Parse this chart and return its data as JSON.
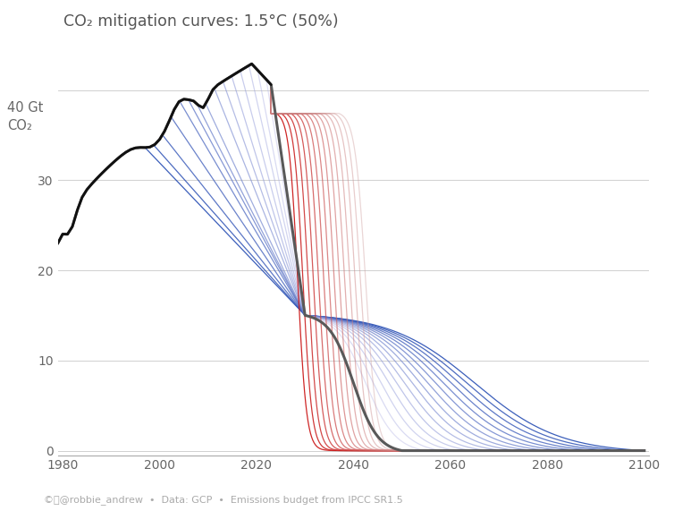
{
  "title": "CO₂ mitigation curves: 1.5°C (50%)",
  "ylabel": "40 Gt\nCO₂",
  "footnote": "©ⓘ@robbie_andrew  •  Data: GCP  •  Emissions budget from IPCC SR1.5",
  "xlim": [
    1979,
    2101
  ],
  "ylim": [
    -0.5,
    46
  ],
  "yticks": [
    0,
    10,
    20,
    30,
    40
  ],
  "xticks": [
    1980,
    2000,
    2020,
    2040,
    2060,
    2080,
    2100
  ],
  "hist_start": 1979,
  "hist_end": 2023,
  "peak_year": 2019,
  "peak_value": 43.1,
  "val_1979": 23.0,
  "val_2023": 37.4,
  "pinch_year": 2030,
  "pinch_val": 15.0,
  "zero_year": 2050,
  "background_color": "#ffffff",
  "hist_color": "#111111",
  "center_color": "#444444",
  "grid_color": "#d0d0d0",
  "blue_start_years": [
    2000,
    2002,
    2004,
    2006,
    2008,
    2010,
    2012,
    2014,
    2016,
    2018,
    2020,
    2022,
    2024,
    2026,
    2028
  ],
  "red_start_years": [
    2024,
    2025,
    2026,
    2027,
    2028,
    2029,
    2030,
    2031,
    2032,
    2033,
    2034,
    2035,
    2036,
    2037,
    2038
  ]
}
